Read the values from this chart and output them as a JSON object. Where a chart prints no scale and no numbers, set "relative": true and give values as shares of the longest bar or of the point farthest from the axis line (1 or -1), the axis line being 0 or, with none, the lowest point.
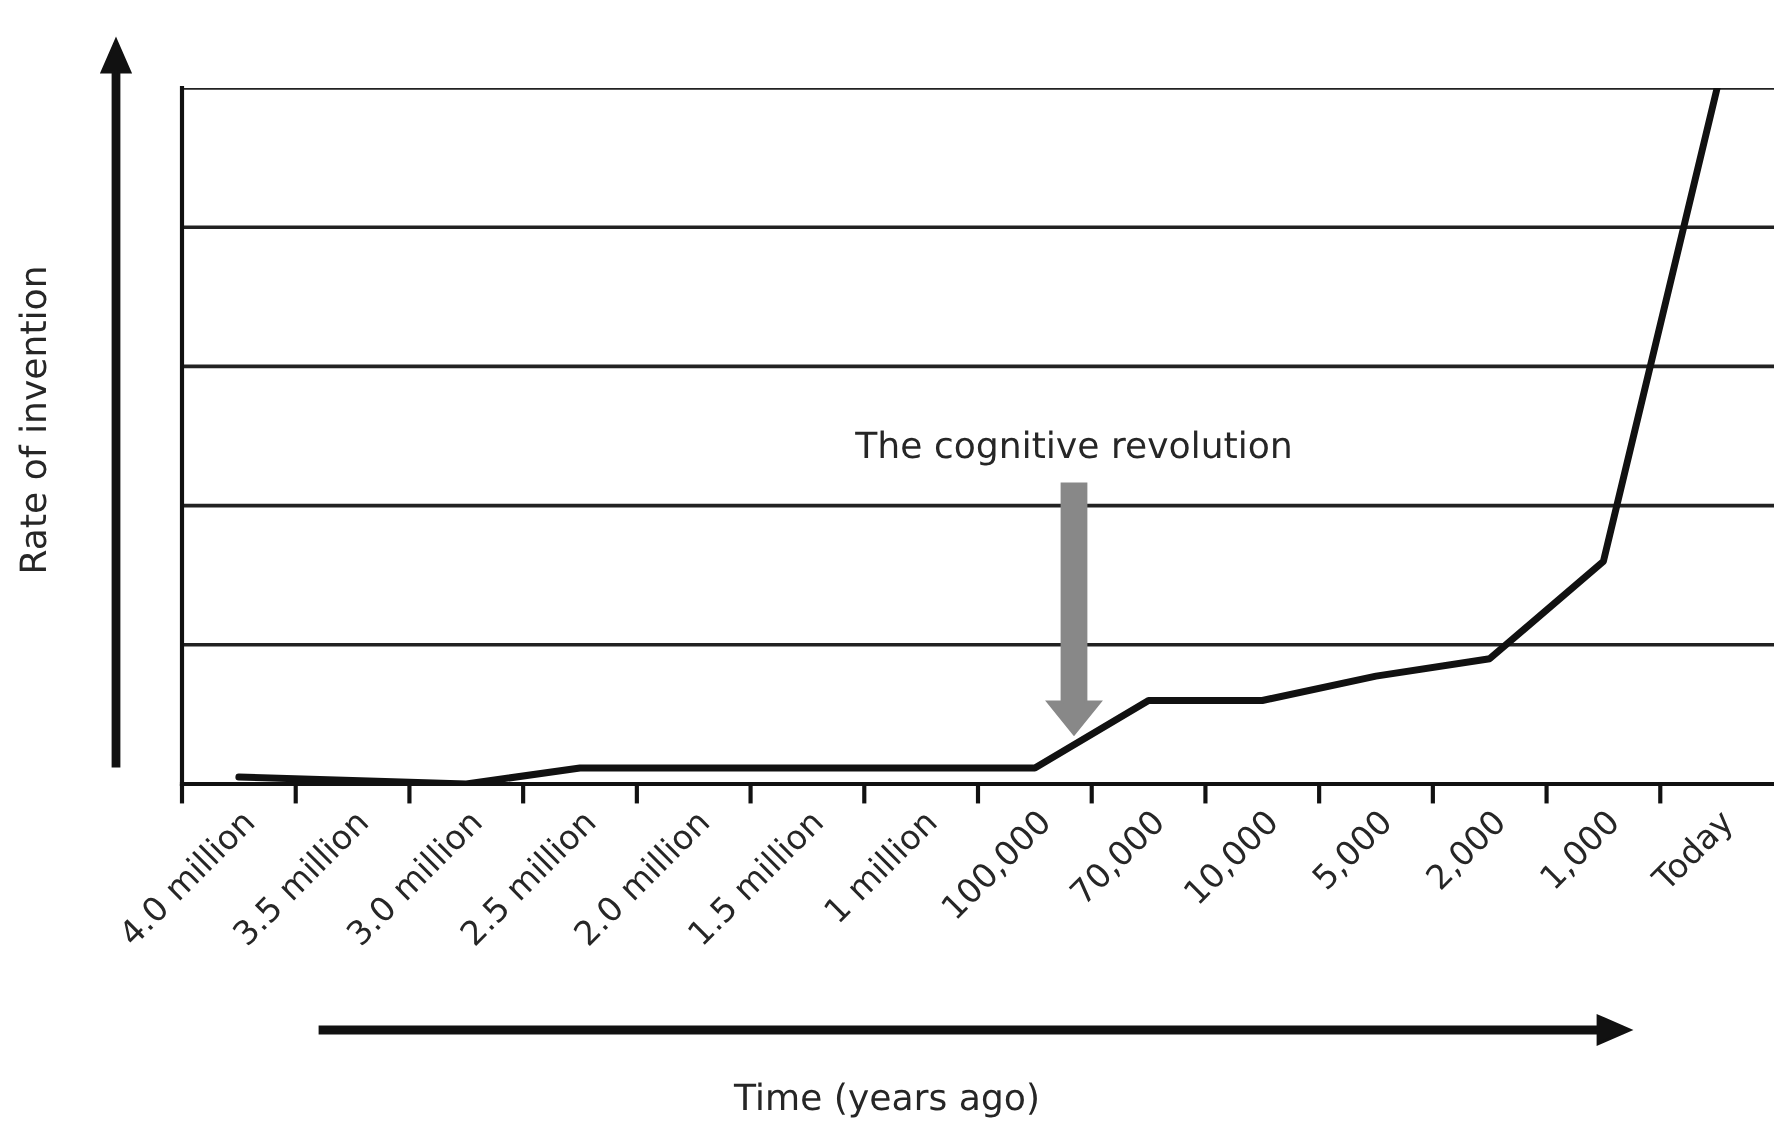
{
  "chart_data": {
    "type": "line",
    "relative": true,
    "xlabel": "Time (years ago)",
    "ylabel": "Rate of invention",
    "categories": [
      "4.0 million",
      "3.5 million",
      "3.0 million",
      "2.5 million",
      "2.0 million",
      "1.5 million",
      "1 million",
      "100,000",
      "70,000",
      "10,000",
      "5,000",
      "2,000",
      "1,000",
      "Today"
    ],
    "series": [
      {
        "color": "#111111",
        "values": [
          0.01,
          0.005,
          0,
          0.023,
          0.023,
          0.023,
          0.023,
          0.023,
          0.12,
          0.12,
          0.155,
          0.18,
          0.32,
          1
        ]
      }
    ],
    "annotations": [
      "The cognitive revolution"
    ],
    "grid": "y",
    "legend": false,
    "marker": "none",
    "line_style": "solid"
  }
}
